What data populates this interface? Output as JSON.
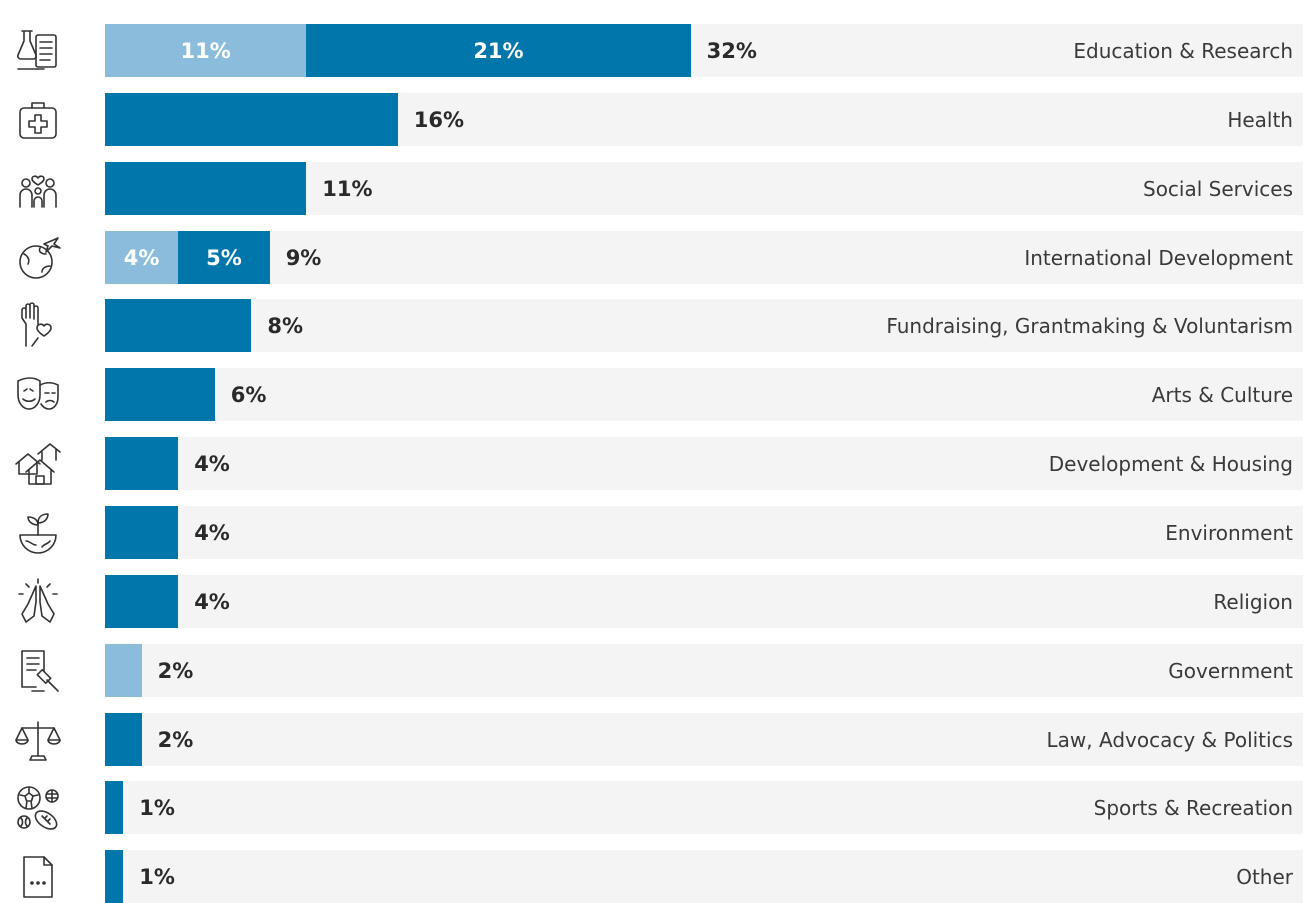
{
  "chart_data": {
    "type": "bar",
    "orientation": "horizontal",
    "stacked": true,
    "xlim": [
      0,
      100
    ],
    "grid": false,
    "colors": {
      "light": "#8bbcdc",
      "dark": "#0076ab",
      "track": "#f4f4f4",
      "total_text": "#2a2a2a",
      "label_text": "#3a3a3a"
    },
    "categories": [
      "Education & Research",
      "Health",
      "Social Services",
      "International Development",
      "Fundraising, Grantmaking & Voluntarism",
      "Arts & Culture",
      "Development & Housing",
      "Environment",
      "Religion",
      "Government",
      "Law, Advocacy & Politics",
      "Sports & Recreation",
      "Other"
    ],
    "icons": [
      "lab-flask-clipboard-icon",
      "first-aid-kit-icon",
      "family-heart-icon",
      "globe-airplane-icon",
      "raised-hand-heart-icon",
      "theater-masks-icon",
      "houses-icon",
      "plant-globe-icon",
      "praying-hands-icon",
      "document-gavel-icon",
      "scales-of-justice-icon",
      "sports-balls-icon",
      "ellipsis-document-icon"
    ],
    "series": [
      {
        "values": [
          11,
          0,
          0,
          4,
          0,
          0,
          0,
          0,
          0,
          2,
          0,
          0,
          0
        ],
        "color": "#8bbcdc"
      },
      {
        "values": [
          21,
          16,
          11,
          5,
          8,
          6,
          4,
          4,
          4,
          0,
          2,
          1,
          1
        ],
        "color": "#0076ab"
      }
    ],
    "segment_labels": [
      [
        "11%",
        "21%"
      ],
      [
        "",
        ""
      ],
      [
        "",
        ""
      ],
      [
        "4%",
        "5%"
      ],
      [
        "",
        ""
      ],
      [
        "",
        ""
      ],
      [
        "",
        ""
      ],
      [
        "",
        ""
      ],
      [
        "",
        ""
      ],
      [
        "",
        ""
      ],
      [
        "",
        ""
      ],
      [
        "",
        ""
      ],
      [
        "",
        ""
      ]
    ],
    "totals": [
      "32%",
      "16%",
      "11%",
      "9%",
      "8%",
      "6%",
      "4%",
      "4%",
      "4%",
      "2%",
      "2%",
      "1%",
      "1%"
    ]
  }
}
